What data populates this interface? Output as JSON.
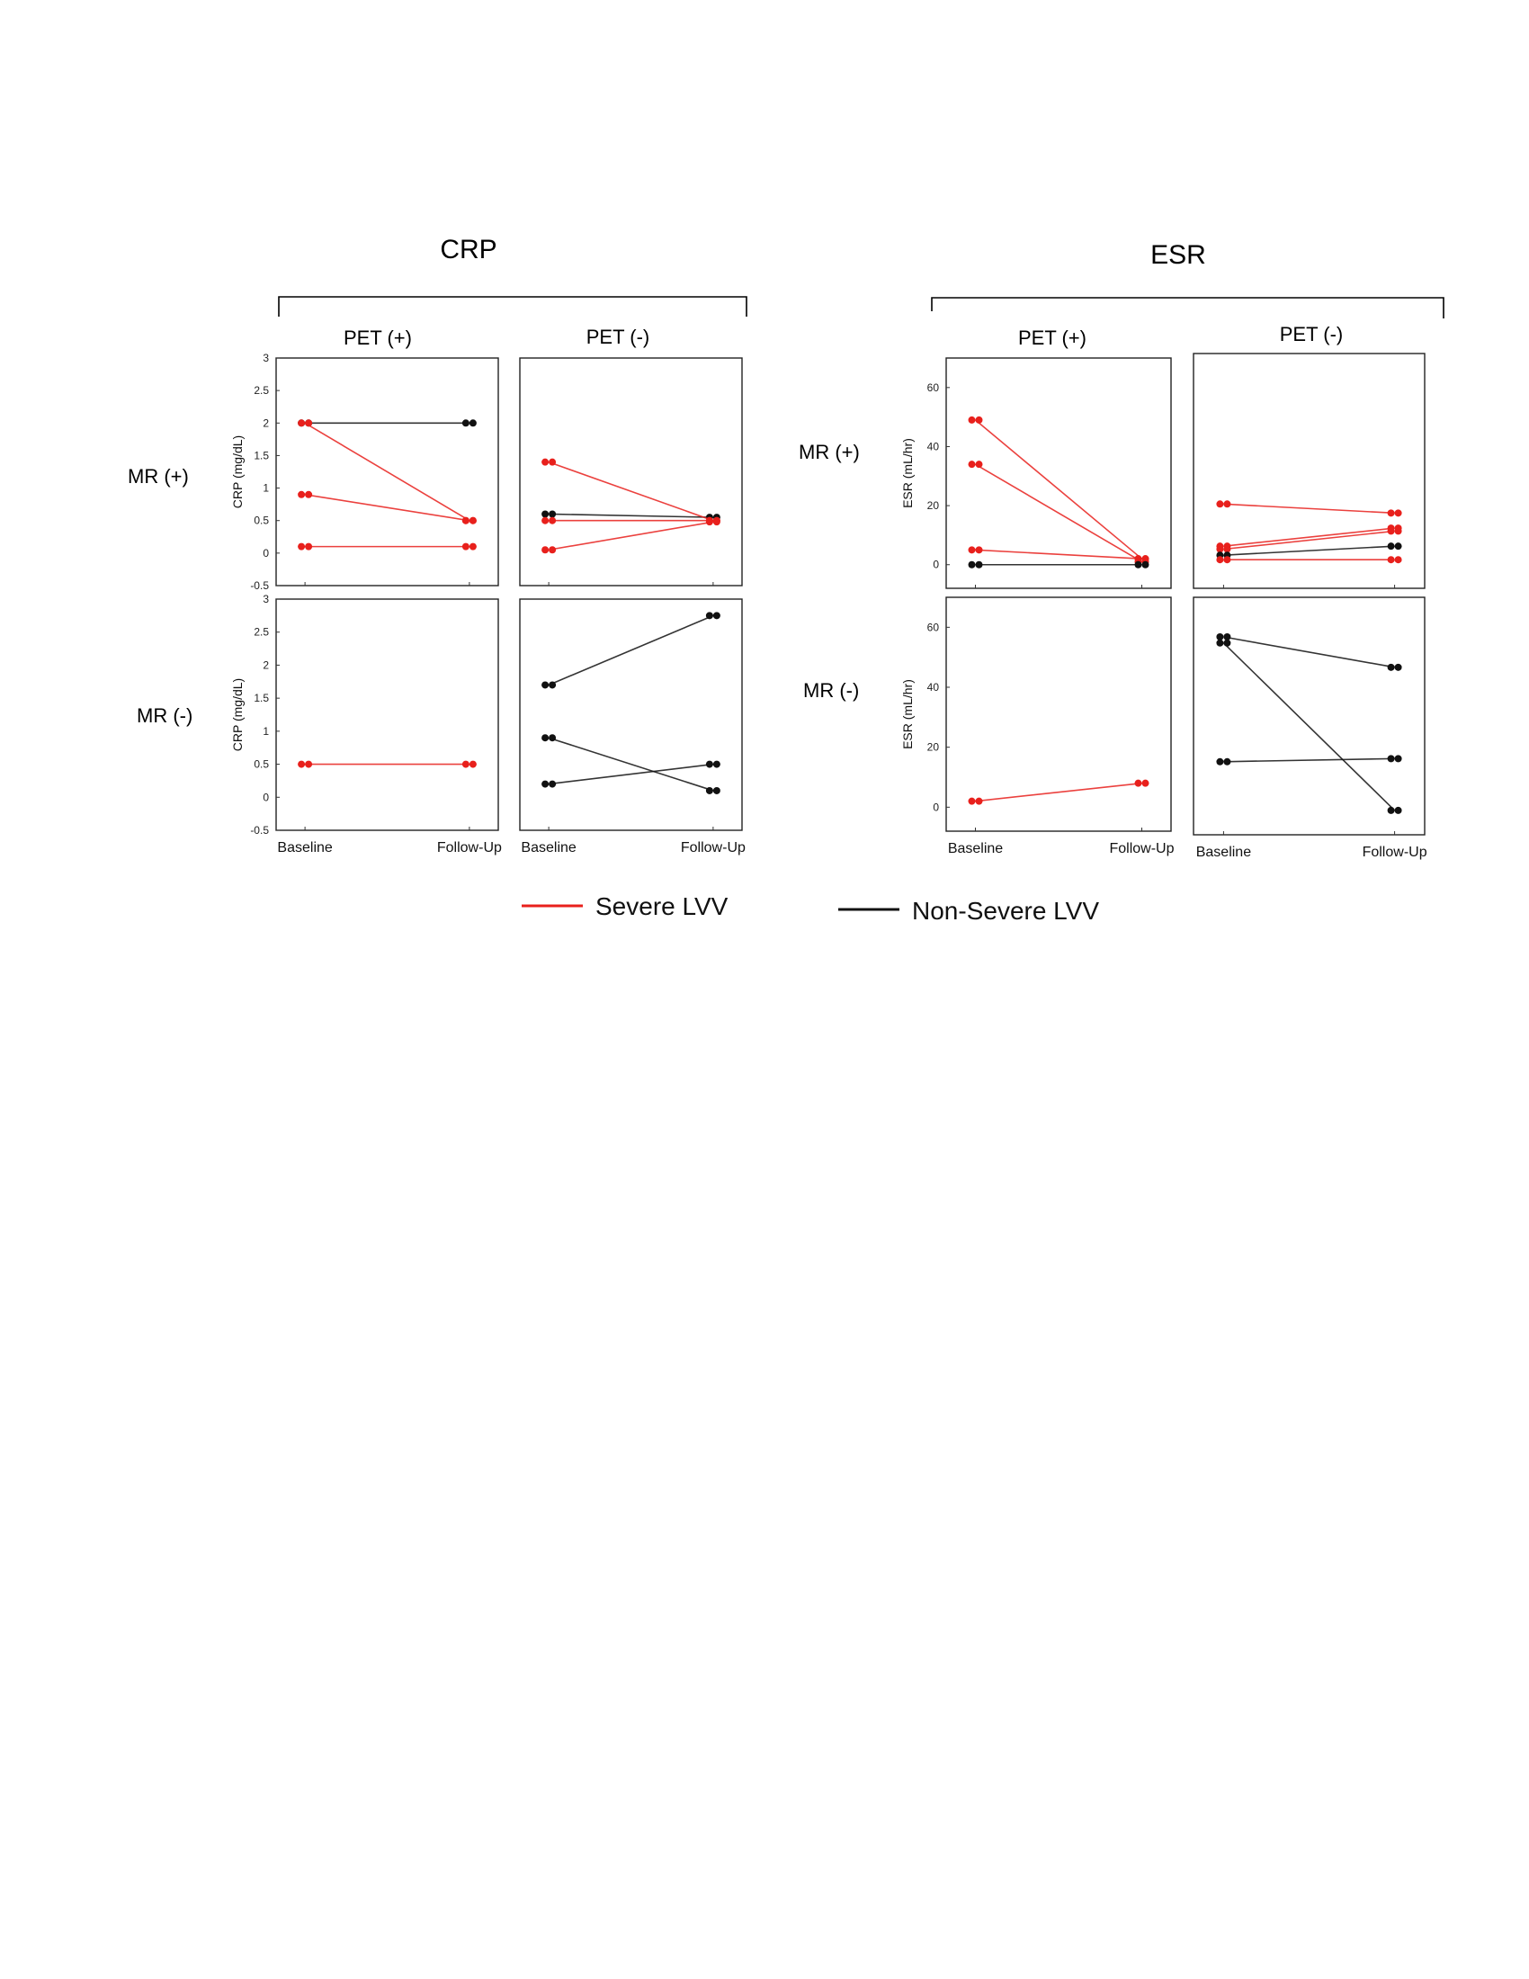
{
  "groups": {
    "crp_title": "CRP",
    "esr_title": "ESR"
  },
  "columns": {
    "pet_pos": "PET (+)",
    "pet_neg": "PET (-)"
  },
  "rows": {
    "mr_pos": "MR (+)",
    "mr_neg": "MR (-)"
  },
  "legend": {
    "severe": "Severe LVV",
    "nonsevere": "Non-Severe LVV"
  },
  "colors": {
    "severe": "#e8201c",
    "nonsevere": "#111111"
  },
  "chart_data": [
    {
      "type": "line",
      "id": "crp-mrpos-petpos",
      "ylabel": "CRP (mg/dL)",
      "ylim": [
        -0.5,
        3
      ],
      "yticks": [
        -0.5,
        0,
        0.5,
        1,
        1.5,
        2,
        2.5,
        3
      ],
      "categories": [
        "Baseline",
        "Follow-Up"
      ],
      "show_categories": false,
      "series": [
        {
          "group": "nonsevere",
          "values": [
            2.0,
            2.0
          ]
        },
        {
          "group": "severe",
          "values": [
            2.0,
            0.5
          ]
        },
        {
          "group": "severe",
          "values": [
            0.9,
            0.5
          ]
        },
        {
          "group": "severe",
          "values": [
            0.1,
            0.1
          ]
        }
      ]
    },
    {
      "type": "line",
      "id": "crp-mrpos-petneg",
      "ylabel": "",
      "ylim": [
        -0.5,
        3
      ],
      "yticks": [],
      "categories": [
        "Baseline",
        "Follow-Up"
      ],
      "show_categories": false,
      "series": [
        {
          "group": "nonsevere",
          "values": [
            0.6,
            0.55
          ]
        },
        {
          "group": "severe",
          "values": [
            1.4,
            0.5
          ]
        },
        {
          "group": "severe",
          "values": [
            0.5,
            0.5
          ]
        },
        {
          "group": "severe",
          "values": [
            0.05,
            0.48
          ]
        }
      ]
    },
    {
      "type": "line",
      "id": "crp-mrneg-petpos",
      "ylabel": "CRP (mg/dL)",
      "ylim": [
        -0.5,
        3
      ],
      "yticks": [
        -0.5,
        0,
        0.5,
        1,
        1.5,
        2,
        2.5,
        3
      ],
      "categories": [
        "Baseline",
        "Follow-Up"
      ],
      "show_categories": true,
      "series": [
        {
          "group": "severe",
          "values": [
            0.5,
            0.5
          ]
        }
      ]
    },
    {
      "type": "line",
      "id": "crp-mrneg-petneg",
      "ylabel": "",
      "ylim": [
        -0.5,
        3
      ],
      "yticks": [],
      "categories": [
        "Baseline",
        "Follow-Up"
      ],
      "show_categories": true,
      "series": [
        {
          "group": "nonsevere",
          "values": [
            1.7,
            2.75
          ]
        },
        {
          "group": "nonsevere",
          "values": [
            0.9,
            0.1
          ]
        },
        {
          "group": "nonsevere",
          "values": [
            0.2,
            0.5
          ]
        }
      ]
    },
    {
      "type": "line",
      "id": "esr-mrpos-petpos",
      "ylabel": "ESR (mL/hr)",
      "ylim": [
        -8,
        70
      ],
      "yticks": [
        0,
        20,
        40,
        60
      ],
      "categories": [
        "Baseline",
        "Follow-Up"
      ],
      "show_categories": false,
      "series": [
        {
          "group": "severe",
          "values": [
            49,
            2
          ]
        },
        {
          "group": "severe",
          "values": [
            34,
            1
          ]
        },
        {
          "group": "severe",
          "values": [
            5,
            2
          ]
        },
        {
          "group": "nonsevere",
          "values": [
            0,
            0
          ]
        }
      ]
    },
    {
      "type": "line",
      "id": "esr-mrpos-petneg",
      "ylabel": "",
      "ylim": [
        -8,
        70
      ],
      "yticks": [],
      "categories": [
        "Baseline",
        "Follow-Up"
      ],
      "show_categories": false,
      "series": [
        {
          "group": "severe",
          "values": [
            20,
            17
          ]
        },
        {
          "group": "severe",
          "values": [
            6,
            12
          ]
        },
        {
          "group": "severe",
          "values": [
            5,
            11
          ]
        },
        {
          "group": "nonsevere",
          "values": [
            3,
            6
          ]
        },
        {
          "group": "severe",
          "values": [
            1.5,
            1.5
          ]
        }
      ]
    },
    {
      "type": "line",
      "id": "esr-mrneg-petpos",
      "ylabel": "ESR (mL/hr)",
      "ylim": [
        -8,
        70
      ],
      "yticks": [
        0,
        20,
        40,
        60
      ],
      "categories": [
        "Baseline",
        "Follow-Up"
      ],
      "show_categories": true,
      "series": [
        {
          "group": "severe",
          "values": [
            2,
            8
          ]
        }
      ]
    },
    {
      "type": "line",
      "id": "esr-mrneg-petneg",
      "ylabel": "",
      "ylim": [
        -8,
        70
      ],
      "yticks": [],
      "categories": [
        "Baseline",
        "Follow-Up"
      ],
      "show_categories": true,
      "series": [
        {
          "group": "nonsevere",
          "values": [
            57,
            47
          ]
        },
        {
          "group": "nonsevere",
          "values": [
            55,
            0
          ]
        },
        {
          "group": "nonsevere",
          "values": [
            16,
            17
          ]
        }
      ]
    }
  ]
}
